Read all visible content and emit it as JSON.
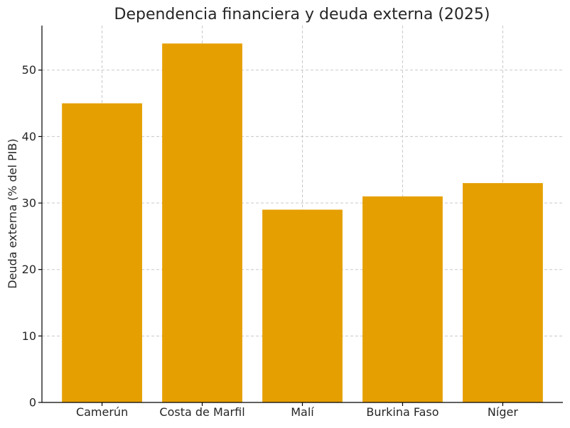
{
  "chart_data": {
    "type": "bar",
    "title": "Dependencia financiera y deuda externa (2025)",
    "xlabel": "",
    "ylabel": "Deuda externa (% del PIB)",
    "categories": [
      "Camerún",
      "Costa de Marfil",
      "Malí",
      "Burkina Faso",
      "Níger"
    ],
    "values": [
      45,
      54,
      29,
      31,
      33
    ],
    "ylim": [
      0,
      56.7
    ],
    "yticks": [
      0,
      10,
      20,
      30,
      40,
      50
    ],
    "grid": true,
    "bar_color": "#E69F00"
  }
}
